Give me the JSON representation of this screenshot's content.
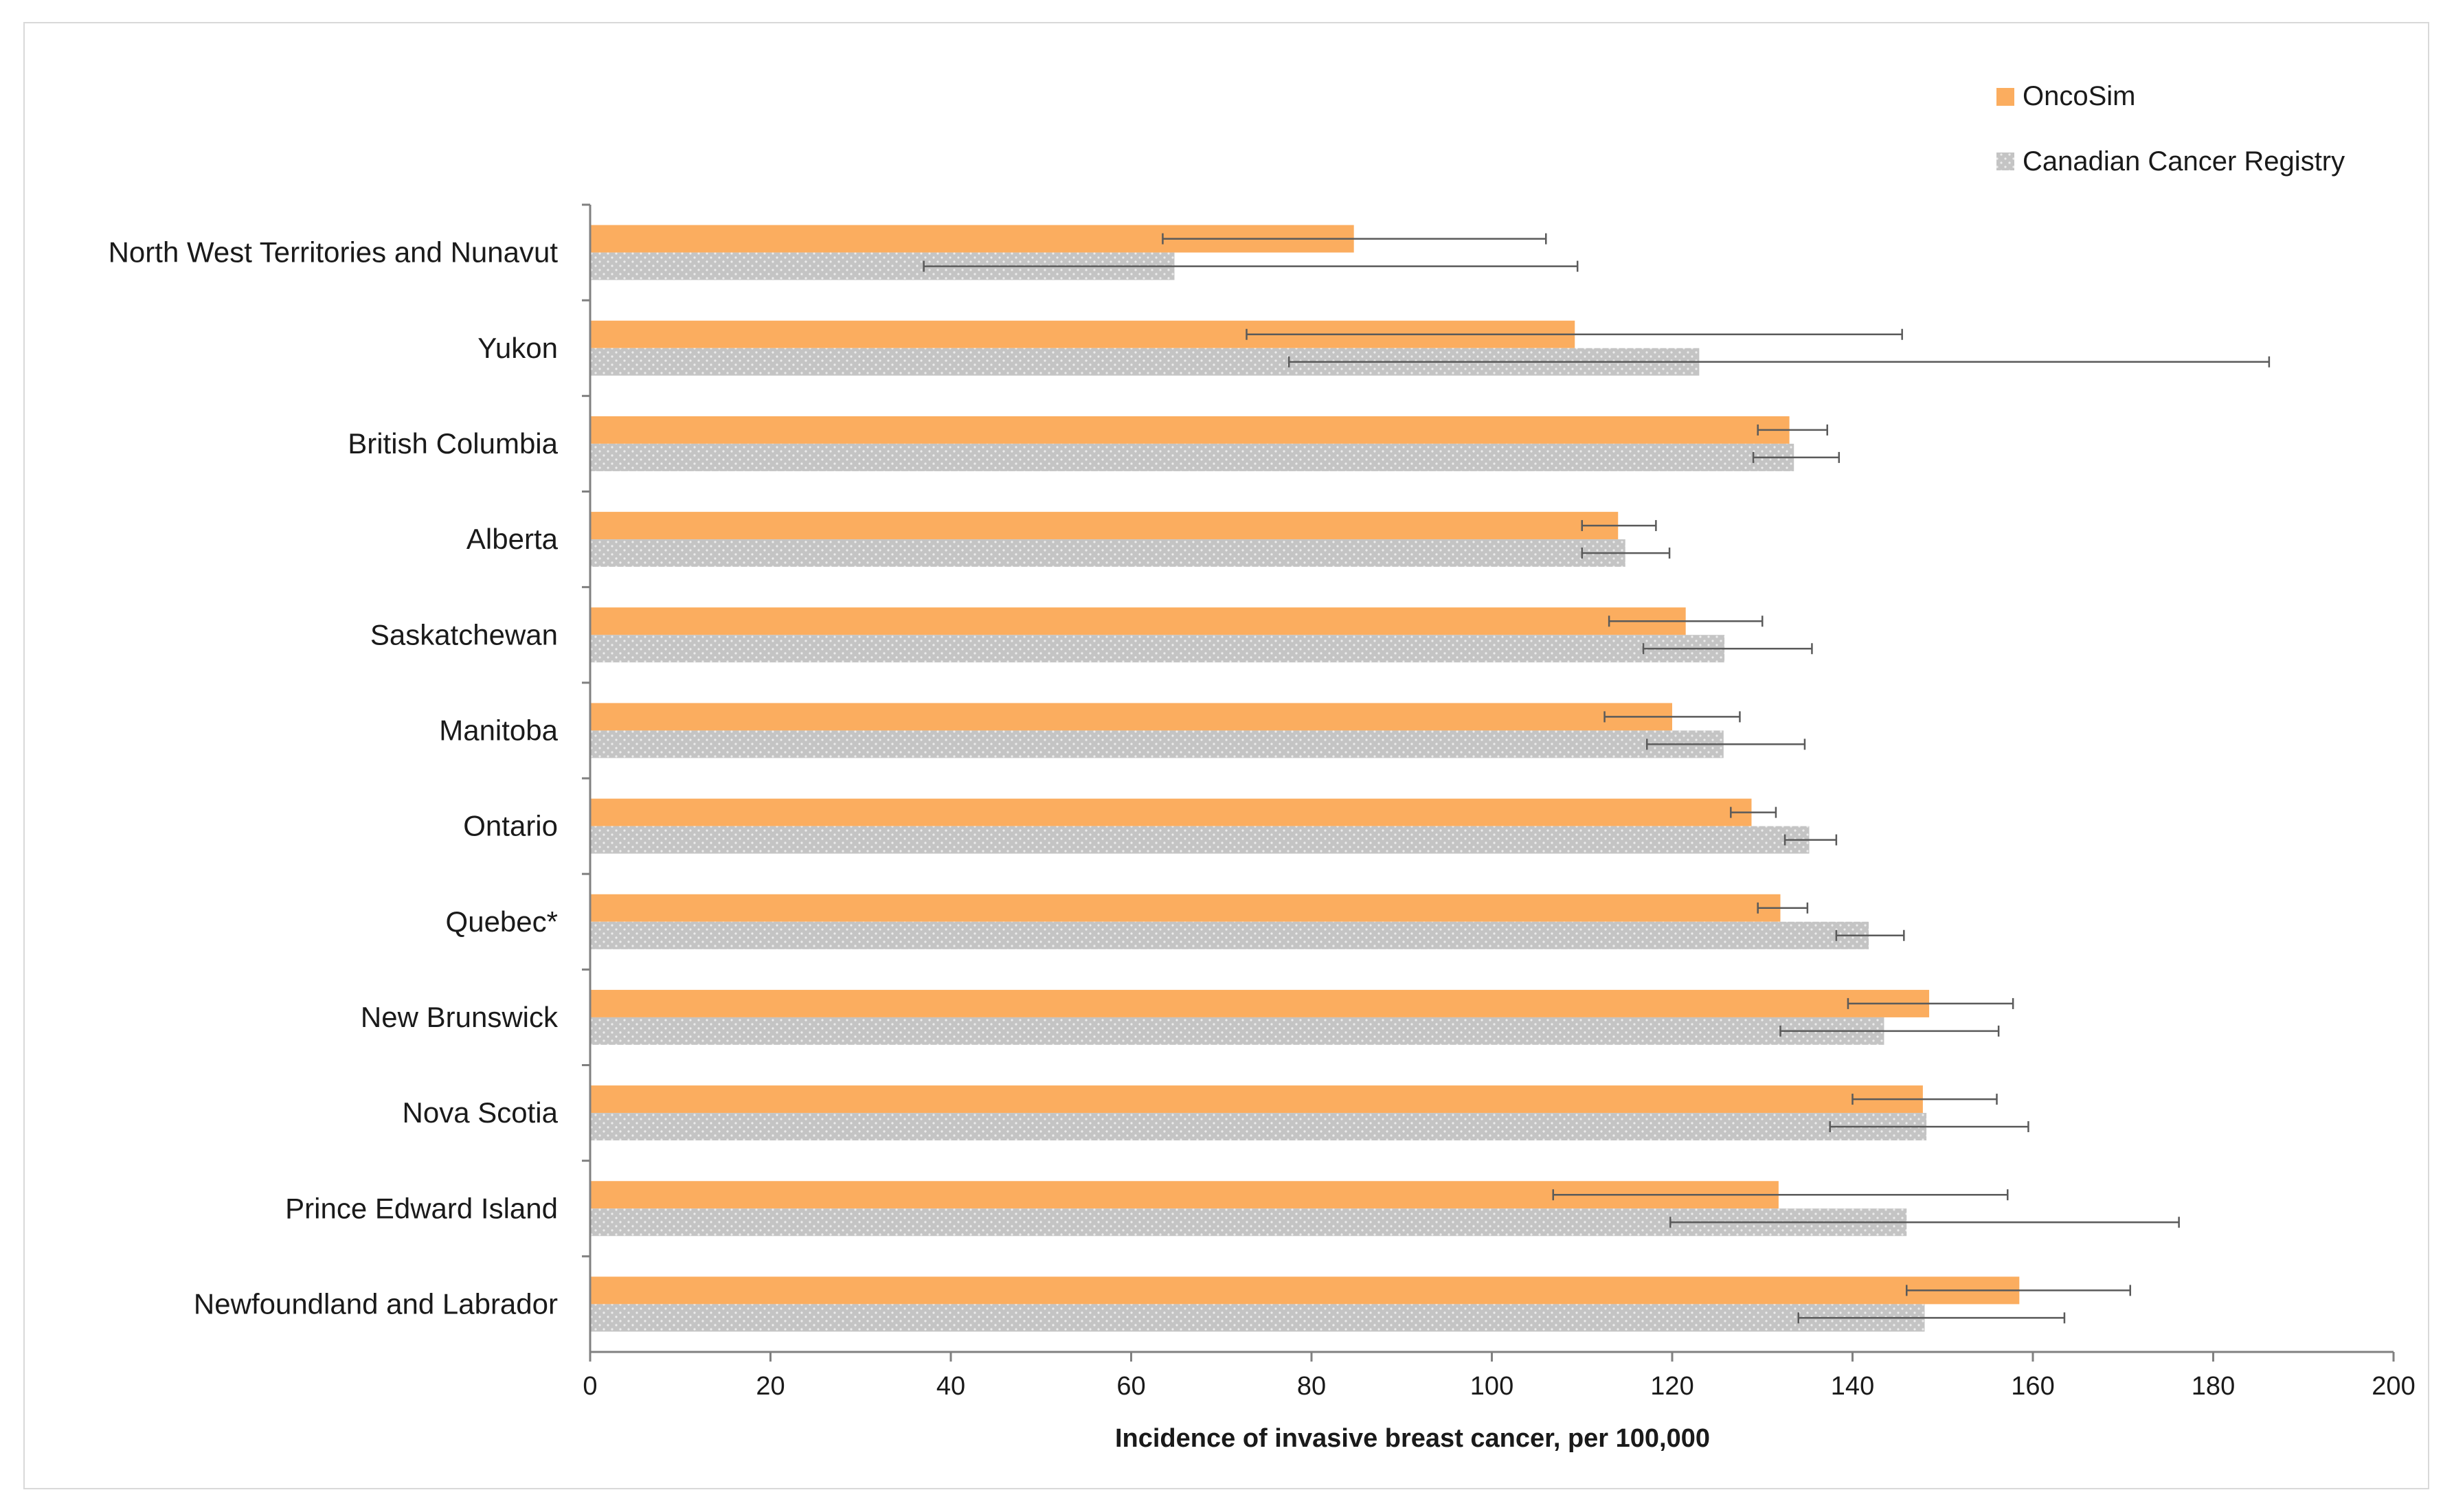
{
  "chart_data": {
    "type": "bar",
    "orientation": "horizontal",
    "title": "",
    "xlabel": "Incidence of invasive breast cancer, per 100,000",
    "ylabel": "",
    "xlim": [
      0,
      200
    ],
    "xticks": [
      0,
      20,
      40,
      60,
      80,
      100,
      120,
      140,
      160,
      180,
      200
    ],
    "legend_position": "top-right",
    "categories": [
      "North West Territories and Nunavut",
      "Yukon",
      "British Columbia",
      "Alberta",
      "Saskatchewan",
      "Manitoba",
      "Ontario",
      "Quebec*",
      "New Brunswick",
      "Nova Scotia",
      "Prince Edward Island",
      "Newfoundland and Labrador"
    ],
    "series": [
      {
        "name": "OncoSim",
        "color": "#fbad5f",
        "values": [
          84.7,
          109.2,
          133.0,
          114.0,
          121.5,
          120.0,
          128.8,
          132.0,
          148.5,
          147.8,
          131.8,
          158.5
        ],
        "error_low": [
          63.5,
          72.8,
          129.5,
          110.0,
          113.0,
          112.5,
          126.5,
          129.5,
          139.5,
          140.0,
          106.8,
          146.0
        ],
        "error_high": [
          106.0,
          145.5,
          137.2,
          118.2,
          130.0,
          127.5,
          131.5,
          135.0,
          157.8,
          156.0,
          157.2,
          170.8
        ]
      },
      {
        "name": "Canadian Cancer Registry",
        "color": "#c4c4c4",
        "values": [
          64.8,
          123.0,
          133.5,
          114.8,
          125.8,
          125.7,
          135.2,
          141.8,
          143.5,
          148.2,
          146.0,
          148.0
        ],
        "error_low": [
          37.0,
          77.5,
          129.0,
          110.0,
          116.8,
          117.2,
          132.5,
          138.2,
          132.0,
          137.5,
          119.8,
          134.0
        ],
        "error_high": [
          109.5,
          186.2,
          138.5,
          119.7,
          135.5,
          134.7,
          138.2,
          145.7,
          156.2,
          159.5,
          176.2,
          163.5
        ]
      }
    ]
  }
}
